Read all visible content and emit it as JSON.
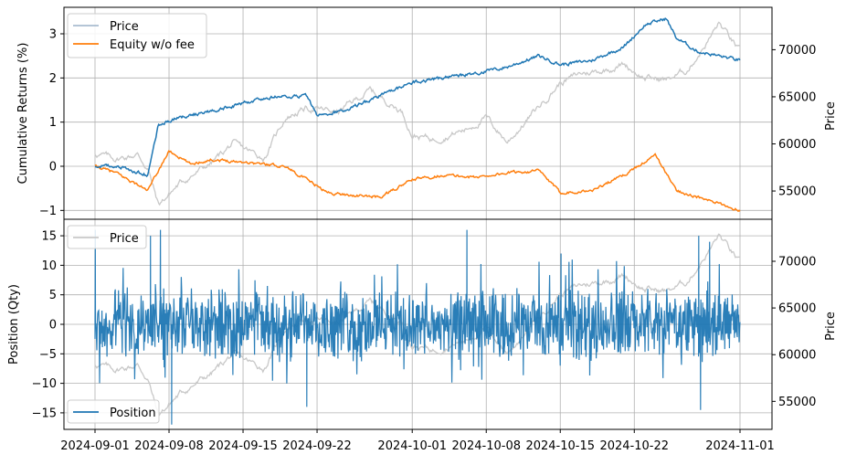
{
  "chart_data": [
    {
      "type": "line",
      "ylabel": "Cumulative Returns (%)",
      "y2label": "Price",
      "ylim": [
        -1.2,
        3.6
      ],
      "y2lim": [
        52000,
        74500
      ],
      "yticks": [
        -1,
        0,
        1,
        2,
        3
      ],
      "y2ticks": [
        55000,
        60000,
        65000,
        70000
      ],
      "grid": true,
      "legend_placement": "upper-left",
      "legend": [
        "Price",
        "Equity w/o fee"
      ],
      "series": [
        {
          "name": "Price",
          "color": "#c8c8c8",
          "axis": "right",
          "x": [
            "2024-09-01",
            "2024-09-03",
            "2024-09-05",
            "2024-09-06",
            "2024-09-07",
            "2024-09-09",
            "2024-09-12",
            "2024-09-14",
            "2024-09-17",
            "2024-09-19",
            "2024-09-21",
            "2024-09-24",
            "2024-09-27",
            "2024-09-30",
            "2024-10-01",
            "2024-10-03",
            "2024-10-06",
            "2024-10-08",
            "2024-10-10",
            "2024-10-13",
            "2024-10-15",
            "2024-10-17",
            "2024-10-19",
            "2024-10-21",
            "2024-10-23",
            "2024-10-25",
            "2024-10-27",
            "2024-10-29",
            "2024-10-30",
            "2024-11-01"
          ],
          "y": [
            59000,
            58400,
            58900,
            57400,
            53500,
            55800,
            58000,
            60000,
            58500,
            62800,
            63800,
            63400,
            65700,
            63500,
            61000,
            60500,
            61500,
            62800,
            60200,
            64000,
            66500,
            67500,
            67800,
            68500,
            67000,
            66800,
            67800,
            71000,
            72800,
            69800
          ]
        },
        {
          "name": "Equity w/o fee",
          "color": "#ff7f0e",
          "axis": "left",
          "x": [
            "2024-09-01",
            "2024-09-03",
            "2024-09-06",
            "2024-09-08",
            "2024-09-10",
            "2024-09-12",
            "2024-09-15",
            "2024-09-19",
            "2024-09-23",
            "2024-09-25",
            "2024-09-28",
            "2024-10-01",
            "2024-10-04",
            "2024-10-07",
            "2024-10-10",
            "2024-10-13",
            "2024-10-15",
            "2024-10-18",
            "2024-10-21",
            "2024-10-24",
            "2024-10-26",
            "2024-10-28",
            "2024-10-30",
            "2024-11-01"
          ],
          "y": [
            0,
            -0.15,
            -0.55,
            0.35,
            0.05,
            0.15,
            0.1,
            0,
            -0.6,
            -0.65,
            -0.7,
            -0.3,
            -0.2,
            -0.25,
            -0.15,
            -0.1,
            -0.6,
            -0.55,
            -0.2,
            0.25,
            -0.55,
            -0.7,
            -0.85,
            -1.0
          ]
        },
        {
          "name": "",
          "color": "#1f77b4",
          "axis": "left",
          "x": [
            "2024-09-01",
            "2024-09-03",
            "2024-09-06",
            "2024-09-07",
            "2024-09-09",
            "2024-09-11",
            "2024-09-13",
            "2024-09-17",
            "2024-09-21",
            "2024-09-22",
            "2024-09-25",
            "2024-09-28",
            "2024-10-01",
            "2024-10-04",
            "2024-10-07",
            "2024-10-10",
            "2024-10-13",
            "2024-10-15",
            "2024-10-18",
            "2024-10-21",
            "2024-10-23",
            "2024-10-25",
            "2024-10-26",
            "2024-10-28",
            "2024-10-30",
            "2024-11-01"
          ],
          "y": [
            0,
            0,
            -0.2,
            0.95,
            1.1,
            1.2,
            1.3,
            1.55,
            1.6,
            1.15,
            1.3,
            1.6,
            1.9,
            2.0,
            2.1,
            2.25,
            2.5,
            2.3,
            2.4,
            2.7,
            3.2,
            3.35,
            2.9,
            2.6,
            2.5,
            2.4
          ]
        }
      ]
    },
    {
      "type": "line",
      "ylabel": "Position (Qty)",
      "y2label": "Price",
      "ylim": [
        -17.8,
        17.8
      ],
      "y2lim": [
        52000,
        74500
      ],
      "yticks": [
        -15,
        -10,
        -5,
        0,
        5,
        10,
        15
      ],
      "y2ticks": [
        55000,
        60000,
        65000,
        70000
      ],
      "grid": true,
      "legend_placement": "upper-left and lower-left",
      "legend": [
        "Price",
        "Position"
      ],
      "series": [
        {
          "name": "Price",
          "color": "#c8c8c8",
          "axis": "right",
          "x": [
            "2024-09-01",
            "2024-09-03",
            "2024-09-05",
            "2024-09-06",
            "2024-09-07",
            "2024-09-09",
            "2024-09-12",
            "2024-09-14",
            "2024-09-17",
            "2024-09-19",
            "2024-09-21",
            "2024-09-24",
            "2024-09-27",
            "2024-09-30",
            "2024-10-01",
            "2024-10-03",
            "2024-10-06",
            "2024-10-08",
            "2024-10-10",
            "2024-10-13",
            "2024-10-15",
            "2024-10-17",
            "2024-10-19",
            "2024-10-21",
            "2024-10-23",
            "2024-10-25",
            "2024-10-27",
            "2024-10-29",
            "2024-10-30",
            "2024-11-01"
          ],
          "y": [
            59000,
            58400,
            58900,
            57400,
            53500,
            55800,
            58000,
            60000,
            58500,
            62800,
            63800,
            63400,
            65700,
            63500,
            61000,
            60500,
            61500,
            62800,
            60200,
            64000,
            66500,
            67500,
            67800,
            68500,
            67000,
            66800,
            67800,
            71000,
            72800,
            69800
          ]
        },
        {
          "name": "Position",
          "color": "#1f77b4",
          "axis": "left",
          "description_range": "oscillates between about -15 and 16 around 0",
          "spikes": [
            {
              "x": "2024-09-01",
              "y": 16
            },
            {
              "x": "2024-09-06",
              "y": 15
            },
            {
              "x": "2024-09-07",
              "y": 16
            },
            {
              "x": "2024-09-08",
              "y": -17
            },
            {
              "x": "2024-09-21",
              "y": -14
            },
            {
              "x": "2024-10-06",
              "y": 16
            },
            {
              "x": "2024-10-15",
              "y": 12
            },
            {
              "x": "2024-10-28",
              "y": 15
            },
            {
              "x": "2024-10-28",
              "y": -14.5
            },
            {
              "x": "2024-10-29",
              "y": 14
            }
          ]
        }
      ]
    }
  ],
  "xticks": [
    "2024-09-01",
    "2024-09-08",
    "2024-09-15",
    "2024-09-22",
    "2024-10-01",
    "2024-10-08",
    "2024-10-15",
    "2024-10-22",
    "2024-11-01"
  ],
  "xlim": [
    "2023-08-31T10:00",
    "2024-11-03T10:00"
  ],
  "legend_top_a": "Price",
  "legend_top_b": "Equity w/o fee",
  "legend_bottom_price": "Price",
  "legend_bottom_position": "Position",
  "ylabel_top": "Cumulative Returns (%)",
  "ylabel_bottom": "Position (Qty)",
  "y2label_top": "Price",
  "y2label_bottom": "Price"
}
